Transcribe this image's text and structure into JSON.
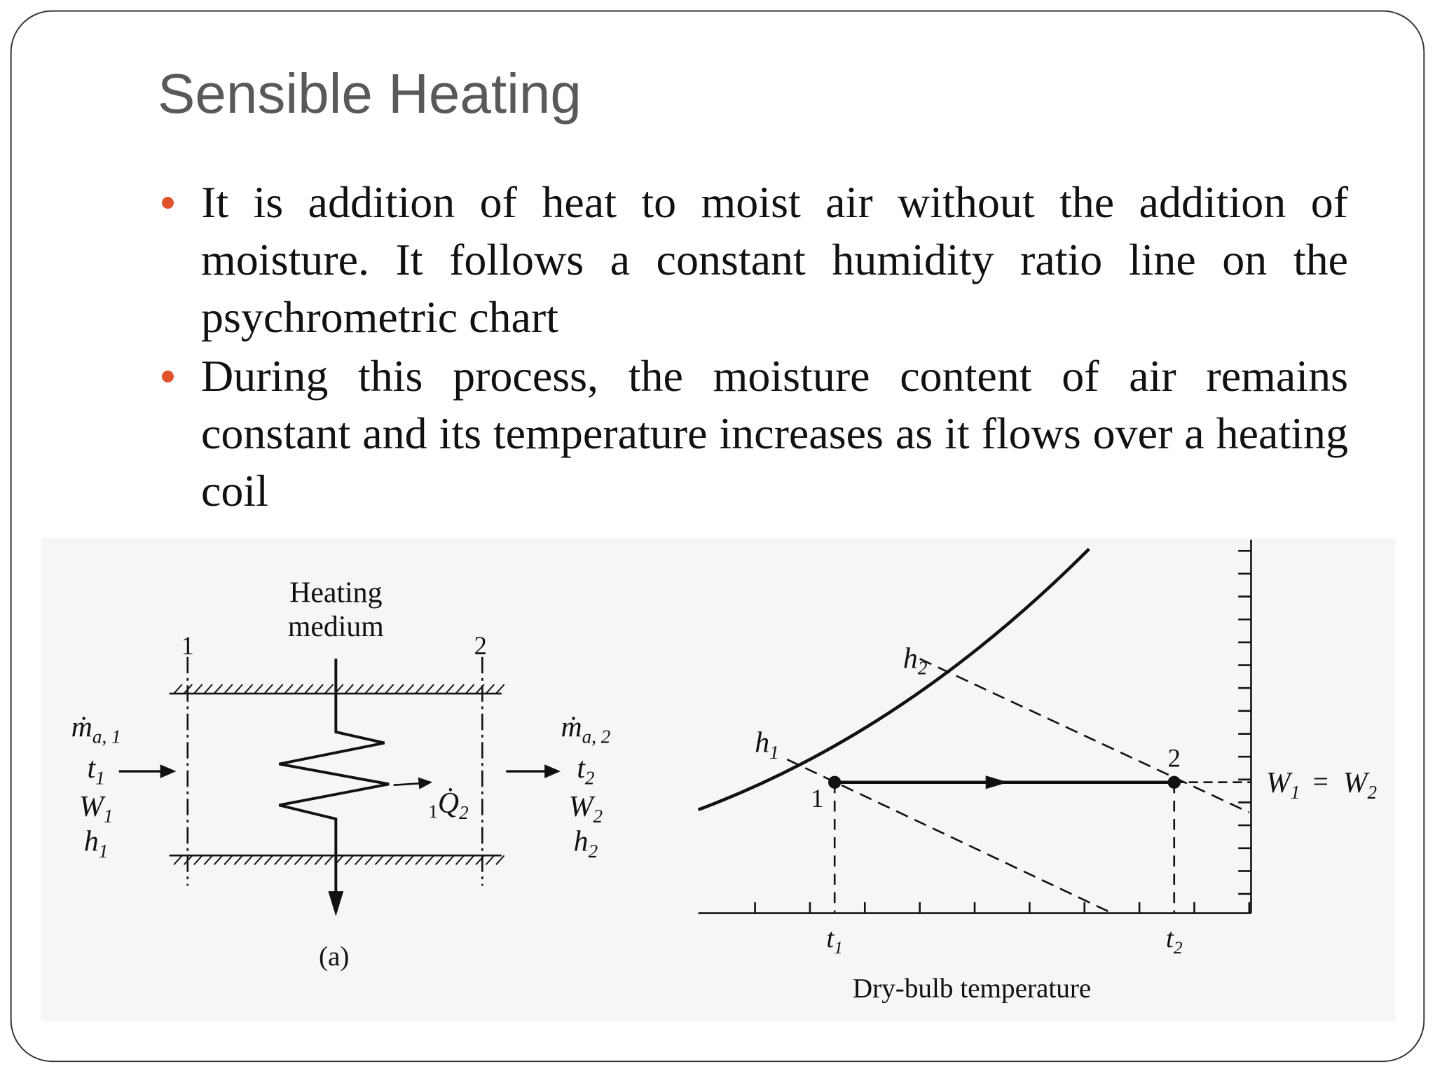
{
  "slide": {
    "title": "Sensible Heating",
    "bullets": [
      "It is addition of heat to moist air without the addition of moisture. It follows a constant humidity ratio line on the psychrometric chart",
      "During this process, the moisture content of air remains constant and its temperature increases as it flows over a heating coil"
    ]
  },
  "figure_a": {
    "heating_medium": [
      "Heating",
      "medium"
    ],
    "station_1": "1",
    "station_2": "2",
    "inlet": [
      {
        "base": "ṁ",
        "sub": "a, 1"
      },
      {
        "base": "t",
        "sub": "1"
      },
      {
        "base": "W",
        "sub": "1"
      },
      {
        "base": "h",
        "sub": "1"
      }
    ],
    "outlet": [
      {
        "base": "ṁ",
        "sub": "a, 2"
      },
      {
        "base": "t",
        "sub": "2"
      },
      {
        "base": "W",
        "sub": "2"
      },
      {
        "base": "h",
        "sub": "2"
      }
    ],
    "heat": {
      "pre": "1",
      "base": "Q̇",
      "sub": "2"
    },
    "caption": "(a)"
  },
  "figure_b": {
    "h1": {
      "base": "h",
      "sub": "1"
    },
    "h2": {
      "base": "h",
      "sub": "2"
    },
    "point_1": "1",
    "point_2": "2",
    "w_left": {
      "base": "W",
      "sub": "1"
    },
    "equals": "=",
    "w_right": {
      "base": "W",
      "sub": "2"
    },
    "t1": {
      "base": "t",
      "sub": "1"
    },
    "t2": {
      "base": "t",
      "sub": "2"
    },
    "x_label": "Dry-bulb temperature"
  }
}
